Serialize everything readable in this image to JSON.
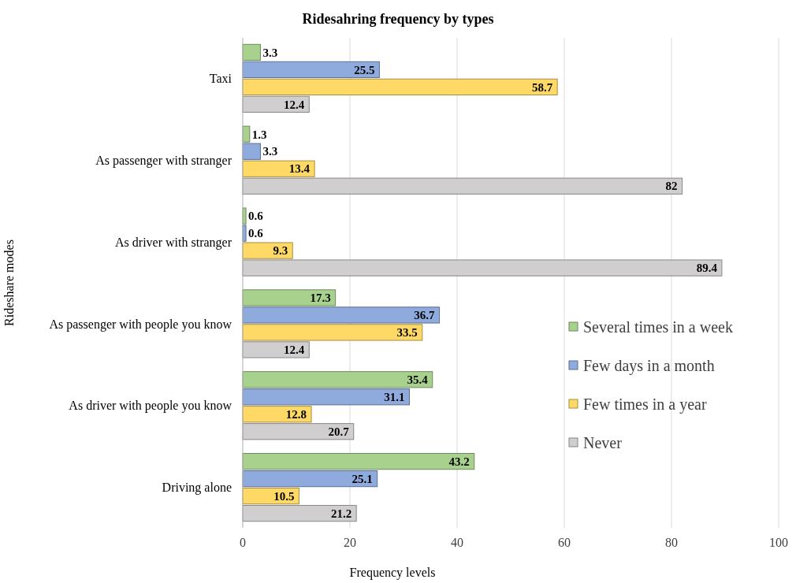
{
  "chart_data": {
    "type": "bar",
    "orientation": "horizontal",
    "title": "Ridesahring  frequency  by types",
    "xlabel": "Frequency levels",
    "ylabel": "Rideshare modes",
    "categories": [
      "Taxi",
      "As passenger with stranger",
      "As driver with stranger",
      "As passenger with people you know",
      "As driver with people you know",
      "Driving alone"
    ],
    "series": [
      {
        "name": "Several times in a week",
        "color": "#a9d18e",
        "values": [
          3.3,
          1.3,
          0.6,
          17.3,
          35.4,
          43.2
        ]
      },
      {
        "name": "Few days in a month",
        "color": "#8faadc",
        "values": [
          25.5,
          3.3,
          0.6,
          36.7,
          31.1,
          25.1
        ]
      },
      {
        "name": "Few times in a year",
        "color": "#ffd966",
        "values": [
          58.7,
          13.4,
          9.3,
          33.5,
          12.8,
          10.5
        ]
      },
      {
        "name": "Never",
        "color": "#d0cece",
        "values": [
          12.4,
          82,
          89.4,
          12.4,
          20.7,
          21.2
        ]
      }
    ],
    "xlim": [
      0,
      100
    ],
    "xticks": [
      0,
      20,
      40,
      60,
      80,
      100
    ],
    "grid": "x",
    "legend": "right",
    "data_labels": true
  }
}
